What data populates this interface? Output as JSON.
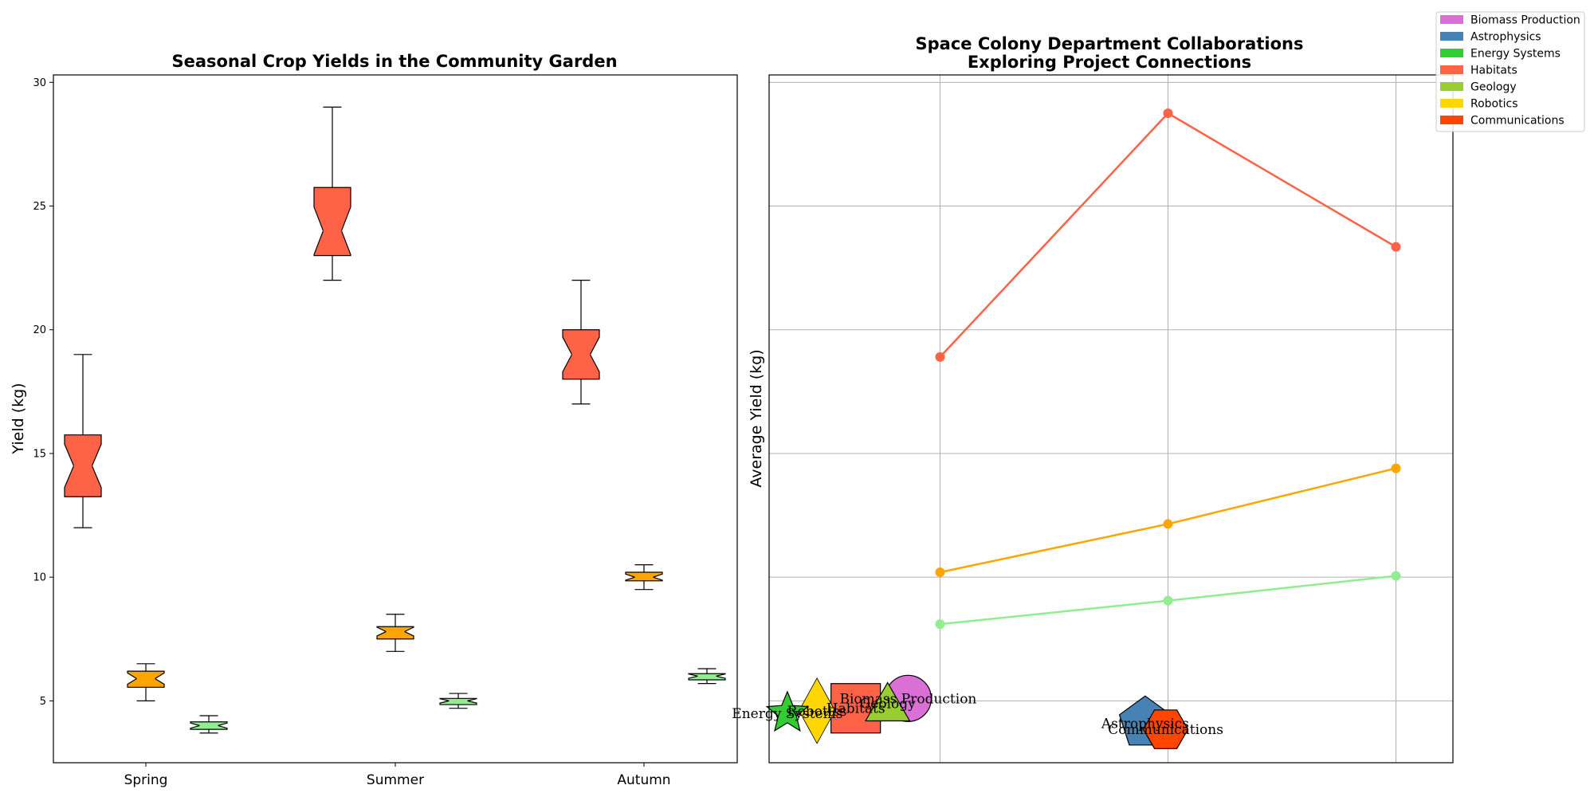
{
  "chart_data": [
    {
      "type": "box",
      "title": "Seasonal Crop Yields in the Community Garden",
      "xlabel": "",
      "ylabel": "Yield (kg)",
      "ylim": [
        2.5,
        30.3
      ],
      "yticks": [
        5,
        10,
        15,
        20,
        25,
        30
      ],
      "categories": [
        "Spring",
        "Summer",
        "Autumn"
      ],
      "notched": true,
      "series": [
        {
          "color": "#ff6347",
          "boxes": [
            {
              "whislo": 12,
              "q1": 13.25,
              "med": 14.5,
              "q3": 15.75,
              "whishi": 19
            },
            {
              "whislo": 22,
              "q1": 23.0,
              "med": 24.0,
              "q3": 25.75,
              "whishi": 29
            },
            {
              "whislo": 17,
              "q1": 18.0,
              "med": 19.0,
              "q3": 20.0,
              "whishi": 22
            }
          ]
        },
        {
          "color": "#ffa500",
          "boxes": [
            {
              "whislo": 5.0,
              "q1": 5.55,
              "med": 5.9,
              "q3": 6.2,
              "whishi": 6.5
            },
            {
              "whislo": 7.0,
              "q1": 7.5,
              "med": 7.8,
              "q3": 8.0,
              "whishi": 8.5
            },
            {
              "whislo": 9.5,
              "q1": 9.85,
              "med": 10.0,
              "q3": 10.2,
              "whishi": 10.5
            }
          ]
        },
        {
          "color": "#90ee90",
          "boxes": [
            {
              "whislo": 3.7,
              "q1": 3.85,
              "med": 4.0,
              "q3": 4.15,
              "whishi": 4.4
            },
            {
              "whislo": 4.7,
              "q1": 4.85,
              "med": 5.0,
              "q3": 5.1,
              "whishi": 5.3
            },
            {
              "whislo": 5.7,
              "q1": 5.85,
              "med": 6.0,
              "q3": 6.1,
              "whishi": 6.3
            }
          ]
        }
      ]
    },
    {
      "type": "line",
      "title": "Space Colony Department Collaborations\nExploring Project Connections",
      "xlabel": "",
      "ylabel": "Average Yield (kg)",
      "tick_labels_shown": false,
      "grid": true,
      "xlim": [
        -0.75,
        2.25
      ],
      "ylim": [
        2.5,
        30.3
      ],
      "x": [
        0,
        1,
        2
      ],
      "series": [
        {
          "color": "#ff6347",
          "values": [
            18.9,
            28.75,
            23.35
          ]
        },
        {
          "color": "#ffa500",
          "values": [
            10.2,
            12.15,
            14.4
          ]
        },
        {
          "color": "#90ee90",
          "values": [
            8.1,
            9.05,
            10.05
          ]
        }
      ],
      "nodes": [
        {
          "label": "Biomass Production",
          "shape": "circle",
          "color": "#da70d6",
          "x": -0.14,
          "y": 5.1
        },
        {
          "label": "Astrophysics",
          "shape": "pentagon",
          "color": "#4682b4",
          "x": 0.9,
          "y": 4.1
        },
        {
          "label": "Energy Systems",
          "shape": "star",
          "color": "#32cd32",
          "x": -0.67,
          "y": 4.5
        },
        {
          "label": "Habitats",
          "shape": "square",
          "color": "#ff6347",
          "x": -0.37,
          "y": 4.7
        },
        {
          "label": "Geology",
          "shape": "triangle",
          "color": "#9acd32",
          "x": -0.23,
          "y": 4.9
        },
        {
          "label": "Robotics",
          "shape": "diamond",
          "color": "#ffd700",
          "x": -0.54,
          "y": 4.6
        },
        {
          "label": "Communications",
          "shape": "hexagon",
          "color": "#ff4500",
          "x": 0.99,
          "y": 3.85
        }
      ],
      "legend": {
        "position": "top-right",
        "entries": [
          {
            "label": "Biomass Production",
            "color": "#da70d6"
          },
          {
            "label": "Astrophysics",
            "color": "#4682b4"
          },
          {
            "label": "Energy Systems",
            "color": "#32cd32"
          },
          {
            "label": "Habitats",
            "color": "#ff6347"
          },
          {
            "label": "Geology",
            "color": "#9acd32"
          },
          {
            "label": "Robotics",
            "color": "#ffd700"
          },
          {
            "label": "Communications",
            "color": "#ff4500"
          }
        ]
      }
    }
  ]
}
